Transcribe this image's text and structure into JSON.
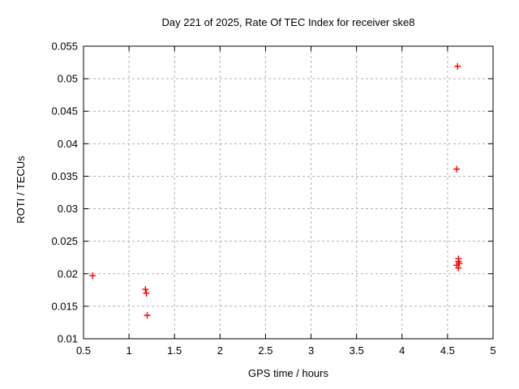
{
  "chart_data": {
    "type": "scatter",
    "title": "Day 221 of 2025, Rate Of TEC Index for receiver ske8",
    "xlabel": "GPS time / hours",
    "ylabel": "ROTI / TECUs",
    "xlim": [
      0.5,
      5
    ],
    "ylim": [
      0.01,
      0.055
    ],
    "x_ticks": [
      "0.5",
      "1",
      "1.5",
      "2",
      "2.5",
      "3",
      "3.5",
      "4",
      "4.5",
      "5"
    ],
    "y_ticks": [
      "0.01",
      "0.015",
      "0.02",
      "0.025",
      "0.03",
      "0.035",
      "0.04",
      "0.045",
      "0.05",
      "0.055"
    ],
    "grid": true,
    "legend_position": "none",
    "marker": "plus",
    "series": [
      {
        "name": "ROTI",
        "points": [
          {
            "x": 0.6,
            "y": 0.0197
          },
          {
            "x": 1.18,
            "y": 0.0176
          },
          {
            "x": 1.19,
            "y": 0.017
          },
          {
            "x": 1.2,
            "y": 0.0136
          },
          {
            "x": 4.61,
            "y": 0.0519
          },
          {
            "x": 4.6,
            "y": 0.0361
          },
          {
            "x": 4.62,
            "y": 0.0223
          },
          {
            "x": 4.62,
            "y": 0.0219
          },
          {
            "x": 4.63,
            "y": 0.0216
          },
          {
            "x": 4.6,
            "y": 0.0213
          },
          {
            "x": 4.62,
            "y": 0.0209
          }
        ]
      }
    ]
  },
  "colors": {
    "background": "#ffffff",
    "axis": "#000000",
    "grid": "#b0b0b0",
    "text": "#000000",
    "marker": "#ff0000"
  }
}
